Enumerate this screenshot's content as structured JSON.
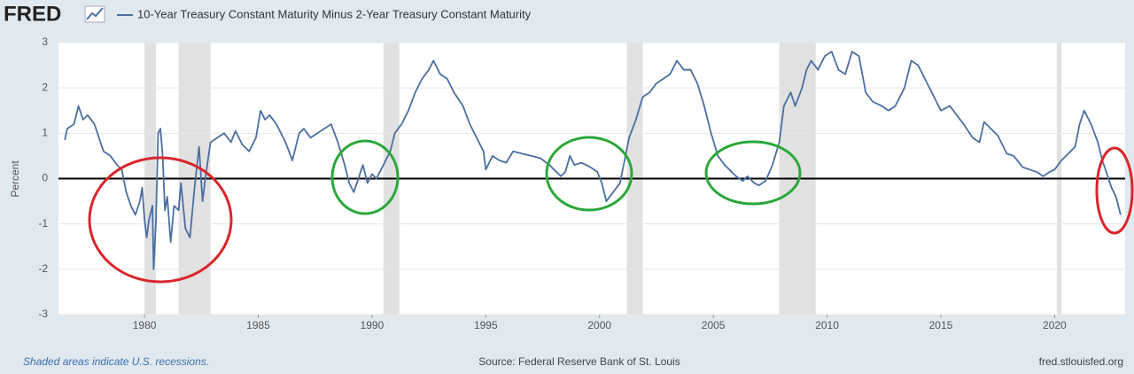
{
  "logo": "FRED",
  "chart_data": {
    "type": "line",
    "y_label": "Percent",
    "footnote": "Shaded areas indicate U.S. recessions.",
    "source": "Source: Federal Reserve Bank of St. Louis",
    "site": "fred.stlouisfed.org",
    "x": [
      1976.5,
      1976.6,
      1976.9,
      1977.1,
      1977.3,
      1977.5,
      1977.8,
      1978.0,
      1978.2,
      1978.5,
      1978.8,
      1979.0,
      1979.2,
      1979.4,
      1979.6,
      1979.8,
      1979.9,
      1980.0,
      1980.1,
      1980.2,
      1980.35,
      1980.4,
      1980.5,
      1980.6,
      1980.7,
      1980.8,
      1980.9,
      1981.0,
      1981.15,
      1981.3,
      1981.5,
      1981.6,
      1981.8,
      1982.0,
      1982.2,
      1982.4,
      1982.55,
      1982.7,
      1982.9,
      1983.2,
      1983.5,
      1983.8,
      1984.0,
      1984.3,
      1984.6,
      1984.9,
      1985.1,
      1985.3,
      1985.5,
      1985.8,
      1986.0,
      1986.2,
      1986.5,
      1986.8,
      1987.0,
      1987.3,
      1987.6,
      1987.9,
      1988.2,
      1988.5,
      1988.8,
      1989.0,
      1989.2,
      1989.4,
      1989.6,
      1989.8,
      1990.0,
      1990.2,
      1990.5,
      1990.8,
      1991.0,
      1991.3,
      1991.6,
      1991.9,
      1992.2,
      1992.5,
      1992.7,
      1993.0,
      1993.3,
      1993.6,
      1994.0,
      1994.3,
      1994.6,
      1994.9,
      1995.0,
      1995.3,
      1995.6,
      1995.9,
      1996.2,
      1996.6,
      1997.0,
      1997.4,
      1997.8,
      1998.0,
      1998.3,
      1998.5,
      1998.7,
      1998.9,
      1999.2,
      1999.6,
      1999.9,
      2000.1,
      2000.3,
      2000.6,
      2000.9,
      2001.1,
      2001.3,
      2001.6,
      2001.9,
      2002.2,
      2002.5,
      2002.8,
      2003.1,
      2003.4,
      2003.7,
      2004.0,
      2004.3,
      2004.6,
      2004.9,
      2005.2,
      2005.5,
      2005.8,
      2006.0,
      2006.3,
      2006.5,
      2006.8,
      2007.0,
      2007.3,
      2007.6,
      2007.9,
      2008.1,
      2008.4,
      2008.6,
      2008.9,
      2009.1,
      2009.3,
      2009.6,
      2009.9,
      2010.2,
      2010.5,
      2010.8,
      2011.1,
      2011.4,
      2011.7,
      2012.0,
      2012.4,
      2012.7,
      2013.0,
      2013.4,
      2013.7,
      2014.0,
      2014.4,
      2014.7,
      2015.0,
      2015.4,
      2015.7,
      2016.0,
      2016.4,
      2016.7,
      2016.9,
      2017.2,
      2017.5,
      2017.9,
      2018.2,
      2018.6,
      2018.9,
      2019.2,
      2019.5,
      2019.8,
      2020.0,
      2020.3,
      2020.6,
      2020.9,
      2021.1,
      2021.3,
      2021.6,
      2021.9,
      2022.1,
      2022.3,
      2022.5,
      2022.7,
      2022.9
    ],
    "series": [
      {
        "name": "10-Year Treasury Constant Maturity Minus 2-Year Treasury Constant Maturity",
        "color": "#4a6fa0",
        "values": [
          0.85,
          1.1,
          1.2,
          1.6,
          1.3,
          1.4,
          1.2,
          0.9,
          0.6,
          0.5,
          0.3,
          0.2,
          -0.3,
          -0.6,
          -0.8,
          -0.5,
          -0.2,
          -0.9,
          -1.3,
          -0.9,
          -0.6,
          -2.0,
          -1.0,
          1.0,
          1.1,
          0.5,
          -0.7,
          -0.4,
          -1.4,
          -0.6,
          -0.7,
          -0.1,
          -1.1,
          -1.3,
          -0.2,
          0.7,
          -0.5,
          0.1,
          0.8,
          0.9,
          1.0,
          0.8,
          1.05,
          0.75,
          0.6,
          0.9,
          1.5,
          1.3,
          1.4,
          1.2,
          1.0,
          0.8,
          0.4,
          1.0,
          1.1,
          0.9,
          1.0,
          1.1,
          1.2,
          0.8,
          0.3,
          -0.1,
          -0.3,
          0.0,
          0.3,
          -0.1,
          0.1,
          0.0,
          0.3,
          0.6,
          1.0,
          1.2,
          1.5,
          1.9,
          2.2,
          2.4,
          2.6,
          2.3,
          2.2,
          1.9,
          1.6,
          1.2,
          0.9,
          0.6,
          0.2,
          0.5,
          0.4,
          0.35,
          0.6,
          0.55,
          0.5,
          0.45,
          0.3,
          0.2,
          0.05,
          0.15,
          0.5,
          0.3,
          0.35,
          0.25,
          0.15,
          -0.1,
          -0.5,
          -0.3,
          -0.1,
          0.4,
          0.9,
          1.3,
          1.8,
          1.9,
          2.1,
          2.2,
          2.3,
          2.6,
          2.4,
          2.4,
          2.1,
          1.6,
          1.0,
          0.5,
          0.3,
          0.15,
          0.05,
          -0.05,
          0.05,
          -0.1,
          -0.15,
          -0.05,
          0.3,
          0.8,
          1.6,
          1.9,
          1.6,
          2.0,
          2.4,
          2.6,
          2.4,
          2.7,
          2.8,
          2.4,
          2.3,
          2.8,
          2.7,
          1.9,
          1.7,
          1.6,
          1.5,
          1.6,
          2.0,
          2.6,
          2.5,
          2.1,
          1.8,
          1.5,
          1.6,
          1.4,
          1.2,
          0.9,
          0.8,
          1.25,
          1.1,
          0.95,
          0.55,
          0.5,
          0.25,
          0.2,
          0.15,
          0.05,
          0.15,
          0.2,
          0.4,
          0.55,
          0.7,
          1.2,
          1.5,
          1.2,
          0.8,
          0.4,
          0.1,
          -0.2,
          -0.4,
          -0.8
        ]
      }
    ],
    "recessions": [
      [
        1980.0,
        1980.5
      ],
      [
        1981.5,
        1982.9
      ],
      [
        1990.5,
        1991.2
      ],
      [
        2001.2,
        2001.9
      ],
      [
        2007.9,
        2009.5
      ],
      [
        2020.1,
        2020.3
      ]
    ],
    "recession_color": "#e1e1e1",
    "xlim": [
      1976.22,
      2023.1
    ],
    "ylim": [
      -3,
      3
    ],
    "xticks": [
      1980,
      1985,
      1990,
      1995,
      2000,
      2005,
      2010,
      2015,
      2020
    ],
    "yticks": [
      -3,
      -2,
      -1,
      0,
      1,
      2,
      3
    ],
    "grid": true
  }
}
